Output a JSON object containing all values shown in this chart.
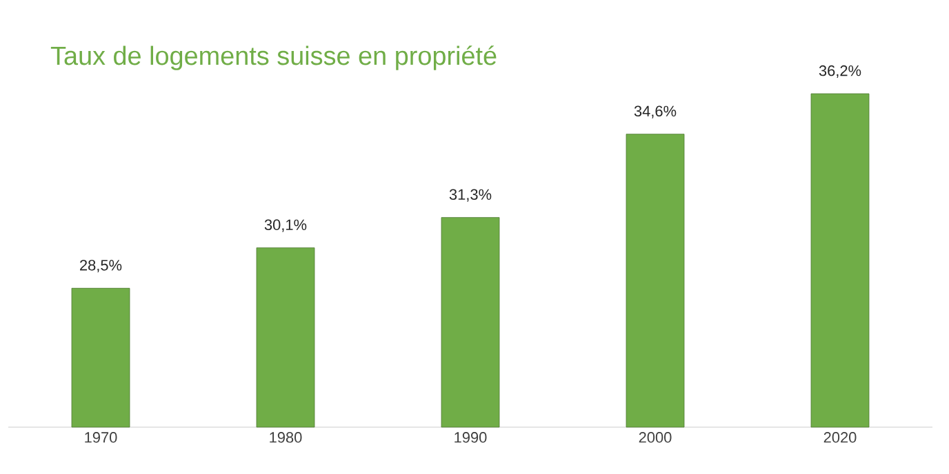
{
  "chart_data": {
    "type": "bar",
    "title": "Taux de logements suisse en propriété",
    "categories": [
      "1970",
      "1980",
      "1990",
      "2000",
      "2020"
    ],
    "values": [
      28.5,
      30.1,
      31.3,
      34.6,
      36.2
    ],
    "value_labels": [
      "28,5%",
      "30,1%",
      "31,3%",
      "34,6%",
      "36,2%"
    ],
    "color": "#70ad47",
    "ylim": [
      23,
      36.2
    ],
    "tick_labels": "x",
    "grid": false
  }
}
